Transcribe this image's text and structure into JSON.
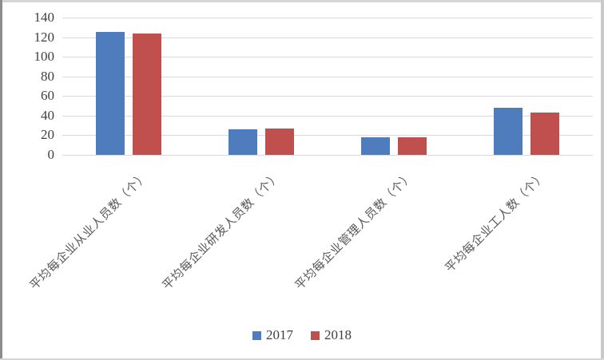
{
  "colors": {
    "series_2017": "#4F7CBD",
    "series_2018": "#C0504D",
    "gridline": "#D9D9D9",
    "axis_text": "#404040",
    "category_text": "#595959",
    "background": "#FFFFFF"
  },
  "legend": {
    "items": [
      {
        "label": "2017",
        "color": "#4F7CBD"
      },
      {
        "label": "2018",
        "color": "#C0504D"
      }
    ]
  },
  "chart_data": {
    "type": "bar",
    "categories": [
      "平均每企业从业人员数（个）",
      "平均每企业研发人员数（个）",
      "平均每企业管理人员数（个）",
      "平均每企业工人数（个）"
    ],
    "series": [
      {
        "name": "2017",
        "color": "#4F7CBD",
        "values": [
          125,
          26,
          18,
          48
        ]
      },
      {
        "name": "2018",
        "color": "#C0504D",
        "values": [
          124,
          27,
          18,
          43
        ]
      }
    ],
    "title": "",
    "xlabel": "",
    "ylabel": "",
    "ylim": [
      0,
      140
    ],
    "ytick_step": 20,
    "ytick_labels": [
      "0",
      "20",
      "40",
      "60",
      "80",
      "100",
      "120",
      "140"
    ],
    "grid": true,
    "legend_position": "bottom"
  }
}
